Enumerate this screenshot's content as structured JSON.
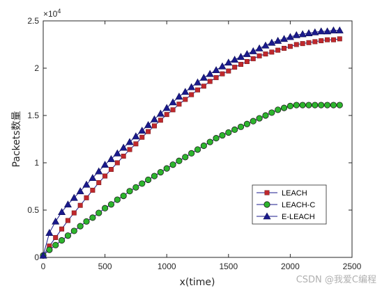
{
  "chart_data": {
    "type": "line",
    "xlabel": "x(time)",
    "ylabel": "Packets数量",
    "y_exponent": "×10^4",
    "y_exponent_base": "×10",
    "y_exponent_power": "4",
    "xlim": [
      0,
      2500
    ],
    "ylim": [
      0,
      2.5
    ],
    "x_ticks": [
      0,
      500,
      1000,
      1500,
      2000,
      2500
    ],
    "y_ticks": [
      0,
      0.5,
      1,
      1.5,
      2,
      2.5
    ],
    "x_tick_labels": [
      "0",
      "500",
      "1000",
      "1500",
      "2000",
      "2500"
    ],
    "y_tick_labels": [
      "0",
      "0.5",
      "1",
      "1.5",
      "2",
      "2.5"
    ],
    "grid": false,
    "legend_position": "bottom-right",
    "series": [
      {
        "name": "LEACH",
        "color": "#1a1a8c",
        "marker": "square",
        "marker_color": "#c0282d",
        "x": [
          0,
          50,
          100,
          150,
          200,
          250,
          300,
          350,
          400,
          450,
          500,
          550,
          600,
          650,
          700,
          750,
          800,
          850,
          900,
          950,
          1000,
          1050,
          1100,
          1150,
          1200,
          1250,
          1300,
          1350,
          1400,
          1450,
          1500,
          1550,
          1600,
          1650,
          1700,
          1750,
          1800,
          1850,
          1900,
          1950,
          2000,
          2050,
          2100,
          2150,
          2200,
          2250,
          2300,
          2350,
          2400
        ],
        "values": [
          0.02,
          0.12,
          0.21,
          0.3,
          0.39,
          0.47,
          0.55,
          0.63,
          0.71,
          0.79,
          0.86,
          0.93,
          1.0,
          1.07,
          1.14,
          1.2,
          1.27,
          1.33,
          1.39,
          1.45,
          1.51,
          1.56,
          1.62,
          1.67,
          1.72,
          1.77,
          1.81,
          1.86,
          1.9,
          1.94,
          1.97,
          2.01,
          2.04,
          2.07,
          2.1,
          2.13,
          2.15,
          2.17,
          2.19,
          2.21,
          2.23,
          2.25,
          2.26,
          2.27,
          2.28,
          2.29,
          2.3,
          2.3,
          2.31
        ]
      },
      {
        "name": "LEACH-C",
        "color": "#1a1a8c",
        "marker": "circle",
        "marker_color": "#2db52d",
        "x": [
          0,
          50,
          100,
          150,
          200,
          250,
          300,
          350,
          400,
          450,
          500,
          550,
          600,
          650,
          700,
          750,
          800,
          850,
          900,
          950,
          1000,
          1050,
          1100,
          1150,
          1200,
          1250,
          1300,
          1350,
          1400,
          1450,
          1500,
          1550,
          1600,
          1650,
          1700,
          1750,
          1800,
          1850,
          1900,
          1950,
          2000,
          2050,
          2100,
          2150,
          2200,
          2250,
          2300,
          2350,
          2400
        ],
        "values": [
          0.02,
          0.08,
          0.13,
          0.18,
          0.23,
          0.28,
          0.33,
          0.38,
          0.42,
          0.47,
          0.52,
          0.56,
          0.61,
          0.65,
          0.7,
          0.74,
          0.78,
          0.82,
          0.86,
          0.9,
          0.94,
          0.98,
          1.02,
          1.06,
          1.1,
          1.14,
          1.18,
          1.22,
          1.26,
          1.29,
          1.32,
          1.35,
          1.38,
          1.41,
          1.44,
          1.47,
          1.5,
          1.53,
          1.56,
          1.58,
          1.6,
          1.61,
          1.61,
          1.61,
          1.61,
          1.61,
          1.61,
          1.61,
          1.61
        ]
      },
      {
        "name": "E-LEACH",
        "color": "#1a1a8c",
        "marker": "triangle",
        "marker_color": "#1a1a8c",
        "x": [
          0,
          50,
          100,
          150,
          200,
          250,
          300,
          350,
          400,
          450,
          500,
          550,
          600,
          650,
          700,
          750,
          800,
          850,
          900,
          950,
          1000,
          1050,
          1100,
          1150,
          1200,
          1250,
          1300,
          1350,
          1400,
          1450,
          1500,
          1550,
          1600,
          1650,
          1700,
          1750,
          1800,
          1850,
          1900,
          1950,
          2000,
          2050,
          2100,
          2150,
          2200,
          2250,
          2300,
          2350,
          2400
        ],
        "values": [
          0.02,
          0.26,
          0.38,
          0.48,
          0.56,
          0.63,
          0.7,
          0.77,
          0.84,
          0.91,
          0.98,
          1.04,
          1.1,
          1.16,
          1.22,
          1.28,
          1.34,
          1.4,
          1.46,
          1.52,
          1.58,
          1.64,
          1.7,
          1.75,
          1.8,
          1.85,
          1.9,
          1.94,
          1.98,
          2.02,
          2.06,
          2.09,
          2.12,
          2.15,
          2.18,
          2.21,
          2.24,
          2.27,
          2.29,
          2.31,
          2.33,
          2.35,
          2.36,
          2.37,
          2.38,
          2.39,
          2.39,
          2.4,
          2.4
        ]
      }
    ]
  },
  "watermark": "CSDN @我爱C编程"
}
